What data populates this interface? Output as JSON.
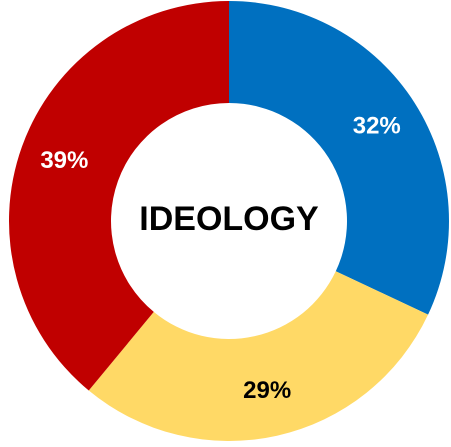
{
  "chart_data": {
    "type": "pie",
    "variant": "donut",
    "center_label": "IDEOLOGY",
    "slices": [
      {
        "value": 32,
        "label": "32%",
        "color": "#0070C0",
        "label_color": "#ffffff"
      },
      {
        "value": 29,
        "label": "29%",
        "color": "#FFD966",
        "label_color": "#000000"
      },
      {
        "value": 39,
        "label": "39%",
        "color": "#C00000",
        "label_color": "#ffffff"
      }
    ],
    "start_angle_deg": 0,
    "direction": "clockwise",
    "legend": "none"
  }
}
